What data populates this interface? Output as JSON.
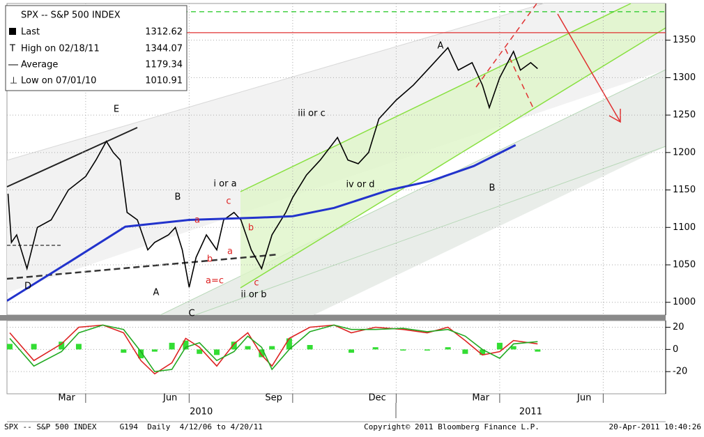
{
  "chart_data": [
    {
      "type": "line",
      "legend_title": "SPX -- S&P 500 INDEX",
      "x": [
        0.75,
        0.85,
        1.0,
        1.3,
        1.6,
        2.0,
        2.5,
        3.0,
        3.3,
        3.6,
        3.8,
        4.0,
        4.2,
        4.5,
        4.8,
        5.0,
        5.4,
        5.6,
        5.8,
        6.0,
        6.2,
        6.5,
        6.8,
        7.0,
        7.3,
        7.5,
        7.8,
        8.1,
        8.4,
        8.8,
        9.0,
        9.4,
        9.8,
        10.3,
        10.6,
        10.9,
        11.2,
        11.5,
        12.0,
        12.5,
        13.0,
        13.5,
        13.8,
        14.2,
        14.5,
        14.7,
        15.0,
        15.4,
        15.6,
        15.9,
        16.1
      ],
      "series": [
        {
          "name": "Last",
          "color": "#000000",
          "legend_value": 1312.62,
          "values": [
            1145,
            1080,
            1090,
            1045,
            1100,
            1110,
            1150,
            1168,
            1190,
            1215,
            1200,
            1190,
            1120,
            1110,
            1070,
            1080,
            1090,
            1100,
            1070,
            1020,
            1060,
            1090,
            1070,
            1110,
            1120,
            1110,
            1070,
            1045,
            1090,
            1120,
            1140,
            1170,
            1190,
            1220,
            1190,
            1185,
            1200,
            1245,
            1270,
            1290,
            1315,
            1340,
            1310,
            1320,
            1290,
            1260,
            1300,
            1335,
            1310,
            1320,
            1312
          ]
        },
        {
          "name": "Average",
          "color": "#2233cc",
          "legend_value": 1179.34,
          "x": [
            0.72,
            2.5,
            4.15,
            6.0,
            8.0,
            9.0,
            10.2,
            11.8,
            13.0,
            14.25,
            15.46
          ],
          "values": [
            1002,
            1053,
            1101,
            1110,
            1113,
            1115,
            1126,
            1150,
            1162,
            1182,
            1210
          ]
        }
      ],
      "stats": [
        {
          "label": "High on 02/18/11",
          "value": 1344.07
        },
        {
          "label": "Low on 07/01/10",
          "value": 1010.91
        }
      ],
      "xlim": [
        0.72,
        19.81
      ],
      "xticks": [
        {
          "value": 2.45,
          "label": "Mar"
        },
        {
          "value": 5.45,
          "label": "Jun"
        },
        {
          "value": 8.45,
          "label": "Sep"
        },
        {
          "value": 11.45,
          "label": "Dec"
        },
        {
          "value": 14.45,
          "label": "Mar"
        },
        {
          "value": 17.45,
          "label": "Jun"
        }
      ],
      "xticks2": [
        {
          "value": 6.35,
          "label": "2010"
        },
        {
          "value": 15.9,
          "label": "2011"
        }
      ],
      "xgrid": [
        3,
        6,
        9,
        12,
        15,
        18
      ],
      "ylim": [
        983,
        1399
      ],
      "yticks": [
        1000,
        1050,
        1100,
        1150,
        1200,
        1250,
        1300,
        1350
      ],
      "grid": true,
      "hlines": [
        {
          "value": 1360,
          "color": "#e03030"
        },
        {
          "value": 1388,
          "color": "#33cc33"
        }
      ],
      "annotations": [
        {
          "text": "E",
          "color": "#000000"
        },
        {
          "text": "B",
          "color": "#000000"
        },
        {
          "text": "A",
          "color": "#000000"
        },
        {
          "text": "D",
          "color": "#000000"
        },
        {
          "text": "C",
          "color": "#000000"
        },
        {
          "text": "i or a",
          "color": "#000000"
        },
        {
          "text": "c",
          "color": "#dd2222"
        },
        {
          "text": "a",
          "color": "#dd2222"
        },
        {
          "text": "b",
          "color": "#dd2222"
        },
        {
          "text": "a=c",
          "color": "#dd2222"
        },
        {
          "text": "a",
          "color": "#dd2222"
        },
        {
          "text": "b",
          "color": "#dd2222"
        },
        {
          "text": "c",
          "color": "#dd2222"
        },
        {
          "text": "ii or b",
          "color": "#000000"
        },
        {
          "text": "iii or c",
          "color": "#000000"
        },
        {
          "text": "iv or d",
          "color": "#000000"
        },
        {
          "text": "A",
          "color": "#000000"
        },
        {
          "text": "B",
          "color": "#000000"
        }
      ]
    },
    {
      "type": "line",
      "x": [
        0.8,
        1.5,
        2.3,
        2.8,
        3.5,
        4.1,
        4.6,
        5.0,
        5.5,
        5.9,
        6.3,
        6.8,
        7.3,
        7.7,
        8.1,
        8.4,
        8.9,
        9.5,
        10.2,
        10.7,
        11.4,
        12.2,
        12.9,
        13.5,
        14.0,
        14.5,
        15.0,
        15.4,
        16.1
      ],
      "series": [
        {
          "color": "#dd2222",
          "values": [
            15,
            -10,
            5,
            20,
            22,
            15,
            -10,
            -22,
            -12,
            10,
            2,
            -15,
            5,
            15,
            -5,
            -15,
            10,
            20,
            22,
            15,
            20,
            18,
            15,
            20,
            8,
            -5,
            -2,
            8,
            5
          ]
        },
        {
          "color": "#22aa22",
          "values": [
            10,
            -15,
            -2,
            15,
            22,
            18,
            -2,
            -20,
            -18,
            2,
            6,
            -10,
            -2,
            12,
            2,
            -18,
            0,
            16,
            22,
            18,
            18,
            19,
            16,
            18,
            12,
            0,
            -8,
            5,
            7
          ]
        },
        {
          "color": "#33dd33",
          "type": "bar",
          "values": [
            5,
            5,
            7,
            5,
            0,
            -3,
            -8,
            -2,
            6,
            8,
            -4,
            -5,
            7,
            3,
            -7,
            3,
            10,
            4,
            0,
            -3,
            2,
            -1,
            -1,
            2,
            -4,
            -5,
            6,
            3,
            -2
          ]
        }
      ],
      "xlim": [
        0.72,
        19.81
      ],
      "ylim": [
        -40,
        26
      ],
      "yticks": [
        20,
        0,
        {
          "value": -20,
          "label": "-20"
        }
      ],
      "grid": true
    }
  ],
  "footer": {
    "left": "SPX -- S&P 500 INDEX     G194  Daily  4/12/06 to 4/20/11",
    "center": "Copyright© 2011 Bloomberg Finance L.P.",
    "right": "20-Apr-2011 10:40:26"
  }
}
